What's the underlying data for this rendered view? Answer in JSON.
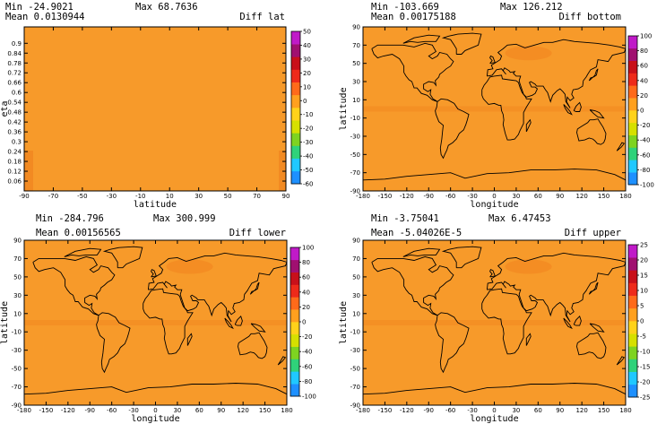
{
  "chart_data": [
    {
      "type": "heatmap",
      "title": "Diff lat",
      "stats": {
        "min_label": "Min",
        "min": "-24.9021",
        "max_label": "Max",
        "max": "68.7636",
        "mean_label": "Mean",
        "mean": "0.0130944"
      },
      "xlabel": "latitude",
      "ylabel": "eta",
      "xlim": [
        -90,
        90
      ],
      "ylim": [
        0.0,
        1.0
      ],
      "x_ticks": [
        "-90",
        "-70",
        "-50",
        "-30",
        "-10",
        "10",
        "30",
        "50",
        "70",
        "90"
      ],
      "y_ticks": [
        "0.06",
        "0.12",
        "0.18",
        "0.24",
        "0.3",
        "0.36",
        "0.42",
        "0.48",
        "0.54",
        "0.6",
        "0.66",
        "0.72",
        "0.78",
        "0.84",
        "0.9"
      ],
      "colorbar_ticks": [
        "-60",
        "-50",
        "-40",
        "-30",
        "-20",
        "-10",
        "0",
        "10",
        "20",
        "30",
        "40",
        "50"
      ],
      "colorbar_range": [
        -60,
        50
      ],
      "has_map": false
    },
    {
      "type": "heatmap",
      "title": "Diff bottom",
      "stats": {
        "min_label": "Min",
        "min": "-103.669",
        "max_label": "Max",
        "max": "126.212",
        "mean_label": "Mean",
        "mean": "0.00175188"
      },
      "xlabel": "longitude",
      "ylabel": "latitude",
      "xlim": [
        -180,
        180
      ],
      "ylim": [
        -90,
        90
      ],
      "x_ticks": [
        "-180",
        "-150",
        "-120",
        "-90",
        "-60",
        "-30",
        "0",
        "30",
        "60",
        "90",
        "120",
        "150",
        "180"
      ],
      "y_ticks": [
        "-90",
        "-70",
        "-50",
        "-30",
        "-10",
        "10",
        "30",
        "50",
        "70",
        "90"
      ],
      "colorbar_ticks": [
        "-100",
        "-80",
        "-60",
        "-40",
        "-20",
        "0",
        "20",
        "40",
        "60",
        "80",
        "100"
      ],
      "colorbar_range": [
        -100,
        100
      ],
      "has_map": true
    },
    {
      "type": "heatmap",
      "title": "Diff lower",
      "stats": {
        "min_label": "Min",
        "min": "-284.796",
        "max_label": "Max",
        "max": "300.999",
        "mean_label": "Mean",
        "mean": "0.00156565"
      },
      "xlabel": "longitude",
      "ylabel": "latitude",
      "xlim": [
        -180,
        180
      ],
      "ylim": [
        -90,
        90
      ],
      "x_ticks": [
        "-180",
        "-150",
        "-120",
        "-90",
        "-60",
        "-30",
        "0",
        "30",
        "60",
        "90",
        "120",
        "150",
        "180"
      ],
      "y_ticks": [
        "-90",
        "-70",
        "-50",
        "-30",
        "-10",
        "10",
        "30",
        "50",
        "70",
        "90"
      ],
      "colorbar_ticks": [
        "-100",
        "-80",
        "-60",
        "-40",
        "-20",
        "0",
        "20",
        "40",
        "60",
        "80",
        "100"
      ],
      "colorbar_range": [
        -100,
        100
      ],
      "has_map": true
    },
    {
      "type": "heatmap",
      "title": "Diff upper",
      "stats": {
        "min_label": "Min",
        "min": "-3.75041",
        "max_label": "Max",
        "max": "6.47453",
        "mean_label": "Mean",
        "mean": "-5.04026E-5"
      },
      "xlabel": "longitude",
      "ylabel": "latitude",
      "xlim": [
        -180,
        180
      ],
      "ylim": [
        -90,
        90
      ],
      "x_ticks": [
        "-180",
        "-150",
        "-120",
        "-90",
        "-60",
        "-30",
        "0",
        "30",
        "60",
        "90",
        "120",
        "150",
        "180"
      ],
      "y_ticks": [
        "-90",
        "-70",
        "-50",
        "-30",
        "-10",
        "10",
        "30",
        "50",
        "70",
        "90"
      ],
      "colorbar_ticks": [
        "-25",
        "-20",
        "-15",
        "-10",
        "-5",
        "0",
        "5",
        "10",
        "15",
        "20",
        "25"
      ],
      "colorbar_range": [
        -25,
        25
      ],
      "has_map": true
    }
  ],
  "colors": {
    "field": "#f79a2a",
    "field_warm": "#f28a22",
    "coast": "#000000",
    "colorbar_stops": [
      "#1e90ff",
      "#20c8ff",
      "#2fd27a",
      "#7ed321",
      "#d6e000",
      "#ffd21a",
      "#ffa01e",
      "#ff6a1a",
      "#ee2a1a",
      "#c8101a",
      "#a01070",
      "#c01ac8"
    ]
  }
}
